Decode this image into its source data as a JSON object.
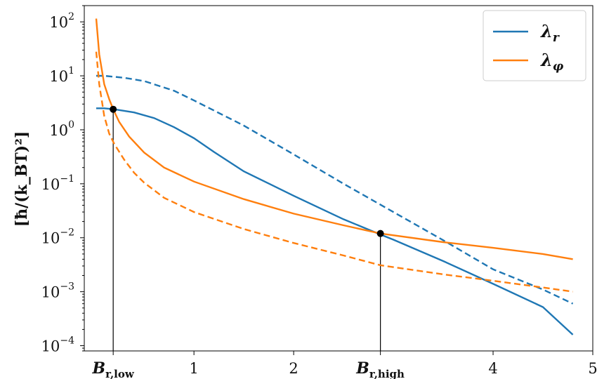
{
  "chart_data": {
    "type": "line",
    "title": "",
    "xlabel": "",
    "ylabel": "[ħ/(k_BT)²]",
    "yscale": "log",
    "xlim": [
      -0.1,
      5.0
    ],
    "ylim": [
      8e-05,
      200
    ],
    "grid": false,
    "legend_position": "top-right",
    "x_ticks": [
      {
        "value": 0.19,
        "label": "B_{r,low}",
        "special": true
      },
      {
        "value": 1,
        "label": "1"
      },
      {
        "value": 2,
        "label": "2"
      },
      {
        "value": 2.87,
        "label": "B_{r,high}",
        "special": true
      },
      {
        "value": 4,
        "label": "4"
      },
      {
        "value": 5,
        "label": "5"
      }
    ],
    "y_ticks": [
      {
        "value": 100,
        "base": "10",
        "exp": "2"
      },
      {
        "value": 10,
        "base": "10",
        "exp": "1"
      },
      {
        "value": 1,
        "base": "10",
        "exp": "0"
      },
      {
        "value": 0.1,
        "base": "10",
        "exp": "−1"
      },
      {
        "value": 0.01,
        "base": "10",
        "exp": "−2"
      },
      {
        "value": 0.001,
        "base": "10",
        "exp": "−3"
      },
      {
        "value": 0.0001,
        "base": "10",
        "exp": "−4"
      }
    ],
    "series": [
      {
        "name": "λ_r",
        "color": "#1f77b4",
        "style": "solid",
        "in_legend": true,
        "points": [
          [
            0.02,
            2.5
          ],
          [
            0.1,
            2.5
          ],
          [
            0.2,
            2.4
          ],
          [
            0.4,
            2.1
          ],
          [
            0.6,
            1.65
          ],
          [
            0.8,
            1.12
          ],
          [
            1.0,
            0.7
          ],
          [
            1.2,
            0.39
          ],
          [
            1.5,
            0.17
          ],
          [
            2.0,
            0.06
          ],
          [
            2.5,
            0.022
          ],
          [
            2.87,
            0.0115
          ],
          [
            3.0,
            0.0092
          ],
          [
            3.5,
            0.0037
          ],
          [
            4.0,
            0.0014
          ],
          [
            4.5,
            0.00052
          ],
          [
            4.8,
            0.00016
          ]
        ]
      },
      {
        "name": "λ_r (dashed)",
        "color": "#1f77b4",
        "style": "dashed",
        "in_legend": false,
        "points": [
          [
            0.02,
            10
          ],
          [
            0.1,
            10
          ],
          [
            0.3,
            9.2
          ],
          [
            0.5,
            8.0
          ],
          [
            0.8,
            5.3
          ],
          [
            1.0,
            3.5
          ],
          [
            1.5,
            1.2
          ],
          [
            2.0,
            0.35
          ],
          [
            2.5,
            0.1
          ],
          [
            3.0,
            0.03
          ],
          [
            3.5,
            0.009
          ],
          [
            4.0,
            0.0026
          ],
          [
            4.5,
            0.0011
          ],
          [
            4.8,
            0.0006
          ]
        ]
      },
      {
        "name": "λ_φ",
        "color": "#ff7f0e",
        "style": "solid",
        "in_legend": true,
        "points": [
          [
            0.02,
            115
          ],
          [
            0.05,
            25
          ],
          [
            0.1,
            7
          ],
          [
            0.15,
            3.7
          ],
          [
            0.19,
            2.4
          ],
          [
            0.25,
            1.4
          ],
          [
            0.35,
            0.75
          ],
          [
            0.5,
            0.38
          ],
          [
            0.7,
            0.2
          ],
          [
            1.0,
            0.11
          ],
          [
            1.5,
            0.052
          ],
          [
            2.0,
            0.028
          ],
          [
            2.5,
            0.017
          ],
          [
            2.87,
            0.012
          ],
          [
            3.5,
            0.0083
          ],
          [
            4.0,
            0.0065
          ],
          [
            4.5,
            0.005
          ],
          [
            4.8,
            0.004
          ]
        ]
      },
      {
        "name": "λ_φ (dashed)",
        "color": "#ff7f0e",
        "style": "dashed",
        "in_legend": false,
        "points": [
          [
            0.02,
            28
          ],
          [
            0.05,
            7
          ],
          [
            0.1,
            1.8
          ],
          [
            0.15,
            0.85
          ],
          [
            0.2,
            0.55
          ],
          [
            0.3,
            0.28
          ],
          [
            0.4,
            0.16
          ],
          [
            0.5,
            0.105
          ],
          [
            0.7,
            0.055
          ],
          [
            1.0,
            0.03
          ],
          [
            1.5,
            0.0145
          ],
          [
            2.0,
            0.008
          ],
          [
            2.5,
            0.0047
          ],
          [
            2.87,
            0.0031
          ],
          [
            3.5,
            0.0021
          ],
          [
            4.0,
            0.0016
          ],
          [
            4.5,
            0.0012
          ],
          [
            4.8,
            0.001
          ]
        ]
      }
    ],
    "markers": [
      {
        "x": 0.19,
        "y": 2.4,
        "name": "B_r,low intersection"
      },
      {
        "x": 2.87,
        "y": 0.012,
        "name": "B_r,high intersection"
      }
    ]
  }
}
